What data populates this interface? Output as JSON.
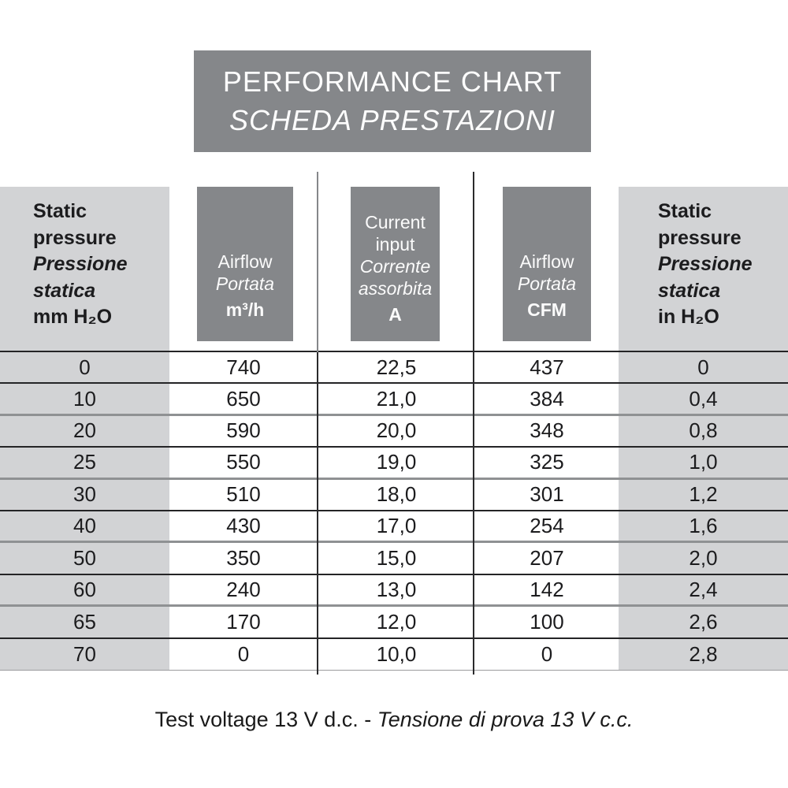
{
  "title": {
    "line1": "PERFORMANCE CHART",
    "line2": "SCHEDA PRESTAZIONI"
  },
  "headers": {
    "static_pressure_mm": {
      "line1": "Static",
      "line2": "pressure",
      "line3": "Pressione",
      "line4": "statica",
      "line5": "mm H₂O"
    },
    "airflow_m3h": {
      "line1": "Airflow",
      "line2": "Portata",
      "line3": "m³/h"
    },
    "current_input": {
      "line1": "Current",
      "line2": "input",
      "line3": "Corrente",
      "line4": "assorbita",
      "line5": "A"
    },
    "airflow_cfm": {
      "line1": "Airflow",
      "line2": "Portata",
      "line3": "CFM"
    },
    "static_pressure_in": {
      "line1": "Static",
      "line2": "pressure",
      "line3": "Pressione",
      "line4": "statica",
      "line5": "in H₂O"
    }
  },
  "table": {
    "columns": [
      "Static pressure mm H₂O",
      "Airflow m³/h",
      "Current input A",
      "Airflow CFM",
      "Static pressure in H₂O"
    ],
    "rows": [
      [
        "0",
        "740",
        "22,5",
        "437",
        "0"
      ],
      [
        "10",
        "650",
        "21,0",
        "384",
        "0,4"
      ],
      [
        "20",
        "590",
        "20,0",
        "348",
        "0,8"
      ],
      [
        "25",
        "550",
        "19,0",
        "325",
        "1,0"
      ],
      [
        "30",
        "510",
        "18,0",
        "301",
        "1,2"
      ],
      [
        "40",
        "430",
        "17,0",
        "254",
        "1,6"
      ],
      [
        "50",
        "350",
        "15,0",
        "207",
        "2,0"
      ],
      [
        "60",
        "240",
        "13,0",
        "142",
        "2,4"
      ],
      [
        "65",
        "170",
        "12,0",
        "100",
        "2,6"
      ],
      [
        "70",
        "0",
        "10,0",
        "0",
        "2,8"
      ]
    ]
  },
  "footer": {
    "en": "Test voltage 13 V d.c. -",
    "it": "Tensione di prova 13 V c.c."
  },
  "colors": {
    "dark_gray": "#85878a",
    "light_gray": "#d2d3d5",
    "row_border_dark": "#242426",
    "row_border_gray": "#8f9193",
    "text": "#1c1c1e",
    "inverse_text": "#fbfbfb"
  }
}
